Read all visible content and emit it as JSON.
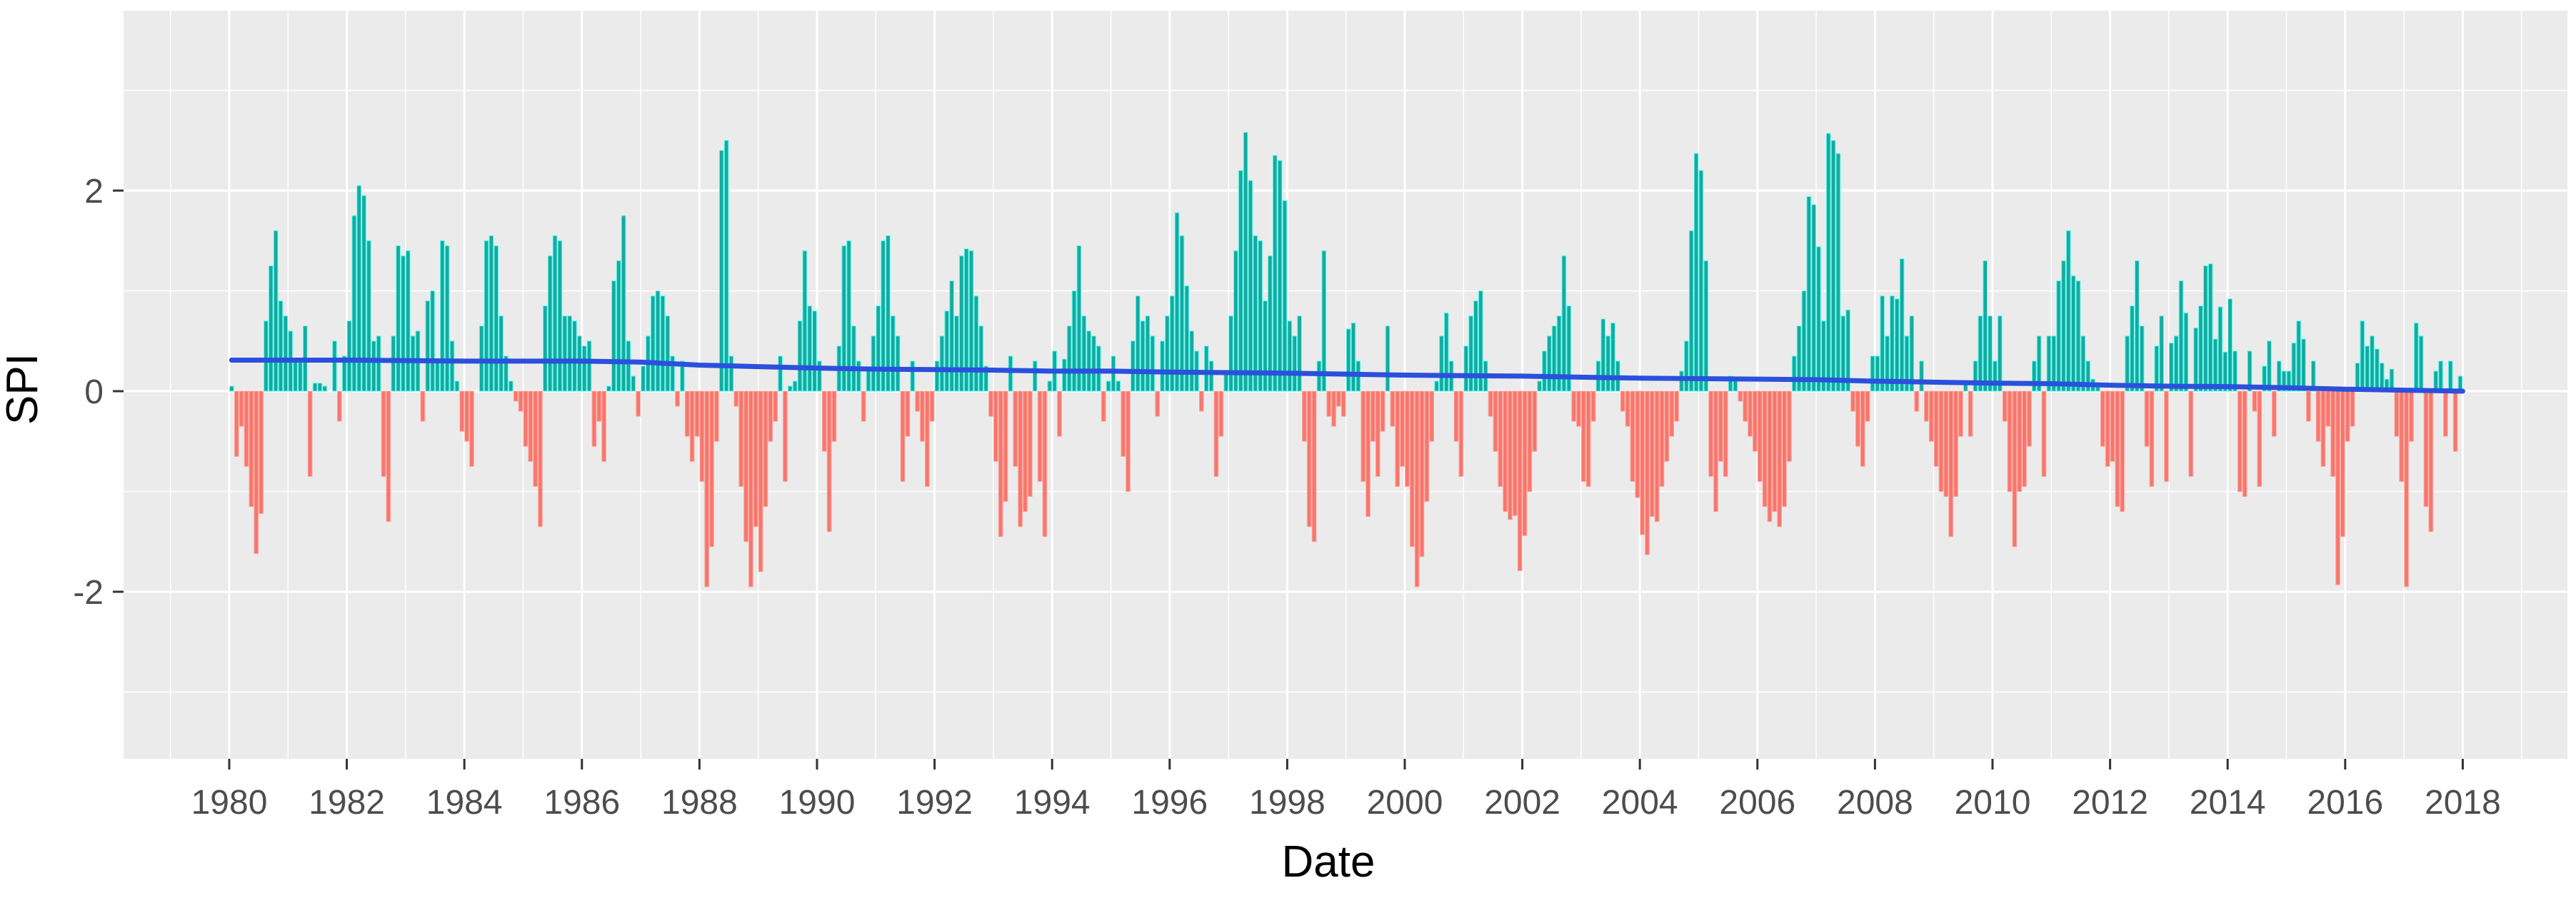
{
  "chart_data": {
    "type": "bar",
    "title": "",
    "xlabel": "Date",
    "ylabel": "SPI",
    "legend": "none",
    "grid": "on",
    "panel_background": "#EBEBEB",
    "gridline_color": "#FFFFFF",
    "axis_text_color": "#4D4D4D",
    "axis_title_color": "#000000",
    "colors": {
      "positive_fill": "#15A99F",
      "positive_edge": "#5CF8EE",
      "negative_fill": "#F8766D",
      "negative_edge": "#FBA59C",
      "trend_line": "#2B50DD"
    },
    "x_tick_labels": [
      "1980",
      "1982",
      "1984",
      "1986",
      "1988",
      "1990",
      "1992",
      "1994",
      "1996",
      "1998",
      "2000",
      "2002",
      "2004",
      "2006",
      "2008",
      "2010",
      "2012",
      "2014",
      "2016",
      "2018"
    ],
    "x_tick_years": [
      1980,
      1982,
      1984,
      1986,
      1988,
      1990,
      1992,
      1994,
      1996,
      1998,
      2000,
      2002,
      2004,
      2006,
      2008,
      2010,
      2012,
      2014,
      2016,
      2018
    ],
    "x_minor_years": [
      1979,
      1981,
      1983,
      1985,
      1987,
      1989,
      1991,
      1993,
      1995,
      1997,
      1999,
      2001,
      2003,
      2005,
      2007,
      2009,
      2011,
      2013,
      2015,
      2017,
      2019
    ],
    "y_tick_labels": [
      "2",
      "0",
      "-2"
    ],
    "y_tick_values": [
      2,
      0,
      -2
    ],
    "y_minor_values": [
      3,
      1,
      -1,
      -3
    ],
    "ylim": [
      -3.67,
      3.79
    ],
    "xlim_years": [
      1978.1,
      2019.9
    ],
    "start_year": 1980,
    "end_year_exclusive": 2018,
    "monthly_spi_by_year": [
      {
        "year": 1980,
        "values": [
          0.05,
          -0.65,
          -0.35,
          -0.75,
          -1.15,
          -1.62,
          -1.22,
          0.7,
          1.25,
          1.6,
          0.9,
          0.75
        ]
      },
      {
        "year": 1981,
        "values": [
          0.6,
          0.3,
          0.3,
          0.65,
          -0.85,
          0.08,
          0.08,
          0.05,
          0.0,
          0.5,
          -0.3,
          0.35
        ]
      },
      {
        "year": 1982,
        "values": [
          0.7,
          1.75,
          2.05,
          1.95,
          1.5,
          0.5,
          0.55,
          -0.85,
          -1.3,
          0.55,
          1.45,
          1.35
        ]
      },
      {
        "year": 1983,
        "values": [
          1.4,
          0.55,
          0.6,
          -0.3,
          0.9,
          1.0,
          0.3,
          1.5,
          1.45,
          0.5,
          0.1,
          -0.4
        ]
      },
      {
        "year": 1984,
        "values": [
          -0.5,
          -0.75,
          0.0,
          0.65,
          1.5,
          1.55,
          1.45,
          0.75,
          0.35,
          0.1,
          -0.1,
          -0.2
        ]
      },
      {
        "year": 1985,
        "values": [
          -0.55,
          -0.7,
          -0.95,
          -1.35,
          0.85,
          1.35,
          1.55,
          1.5,
          0.75,
          0.75,
          0.7,
          0.55
        ]
      },
      {
        "year": 1986,
        "values": [
          0.45,
          0.5,
          -0.55,
          -0.3,
          -0.7,
          0.05,
          1.1,
          1.3,
          1.75,
          0.5,
          0.15,
          -0.25
        ]
      },
      {
        "year": 1987,
        "values": [
          0.25,
          0.55,
          0.95,
          1.0,
          0.95,
          0.75,
          0.35,
          -0.15,
          0.3,
          -0.45,
          -0.7,
          -0.45
        ]
      },
      {
        "year": 1988,
        "values": [
          -0.9,
          -1.95,
          -1.55,
          -0.5,
          2.4,
          2.5,
          0.35,
          -0.15,
          -0.95,
          -1.5,
          -1.95,
          -1.35
        ]
      },
      {
        "year": 1989,
        "values": [
          -1.8,
          -1.15,
          -0.5,
          -0.3,
          0.35,
          -0.9,
          0.05,
          0.1,
          0.7,
          1.4,
          0.85,
          0.8
        ]
      },
      {
        "year": 1990,
        "values": [
          0.3,
          -0.6,
          -1.4,
          -0.5,
          0.45,
          1.45,
          1.5,
          0.65,
          0.3,
          -0.3,
          0.2,
          0.55
        ]
      },
      {
        "year": 1991,
        "values": [
          0.85,
          1.5,
          1.55,
          0.75,
          0.55,
          -0.9,
          -0.45,
          0.3,
          -0.2,
          -0.5,
          -0.95,
          -0.3
        ]
      },
      {
        "year": 1992,
        "values": [
          0.3,
          0.55,
          0.8,
          1.1,
          0.75,
          1.35,
          1.42,
          1.4,
          0.95,
          0.65,
          0.25,
          -0.25
        ]
      },
      {
        "year": 1993,
        "values": [
          -0.7,
          -1.45,
          -1.1,
          0.35,
          -0.75,
          -1.35,
          -1.2,
          -1.05,
          0.3,
          -0.9,
          -1.45,
          0.1
        ]
      },
      {
        "year": 1994,
        "values": [
          0.4,
          -0.45,
          0.32,
          0.65,
          1.0,
          1.45,
          0.75,
          0.6,
          0.55,
          0.45,
          -0.3,
          0.1
        ]
      },
      {
        "year": 1995,
        "values": [
          0.35,
          0.1,
          -0.65,
          -1.0,
          0.5,
          0.95,
          0.7,
          0.75,
          0.55,
          -0.25,
          0.5,
          0.75
        ]
      },
      {
        "year": 1996,
        "values": [
          0.95,
          1.78,
          1.55,
          1.05,
          0.6,
          0.4,
          -0.2,
          0.45,
          0.3,
          -0.85,
          -0.45,
          0.2
        ]
      },
      {
        "year": 1997,
        "values": [
          0.75,
          1.4,
          2.2,
          2.58,
          2.1,
          1.55,
          1.5,
          0.9,
          1.35,
          2.35,
          2.3,
          1.9
        ]
      },
      {
        "year": 1998,
        "values": [
          0.7,
          0.55,
          0.75,
          -0.5,
          -1.35,
          -1.5,
          0.3,
          1.4,
          -0.25,
          -0.35,
          -0.15,
          -0.25
        ]
      },
      {
        "year": 1999,
        "values": [
          0.62,
          0.68,
          0.3,
          -0.9,
          -1.25,
          -0.5,
          -0.85,
          -0.4,
          0.65,
          -0.35,
          -0.95,
          -0.75
        ]
      },
      {
        "year": 2000,
        "values": [
          -0.95,
          -1.55,
          -1.95,
          -1.65,
          -1.1,
          -0.5,
          0.1,
          0.55,
          0.78,
          0.3,
          -0.5,
          -0.85
        ]
      },
      {
        "year": 2001,
        "values": [
          0.45,
          0.75,
          0.9,
          1.0,
          0.3,
          -0.25,
          -0.6,
          -0.95,
          -1.2,
          -1.28,
          -1.24,
          -1.79
        ]
      },
      {
        "year": 2002,
        "values": [
          -1.44,
          -1.0,
          -0.6,
          0.1,
          0.4,
          0.55,
          0.65,
          0.75,
          1.35,
          0.85,
          -0.3,
          -0.35
        ]
      },
      {
        "year": 2003,
        "values": [
          -0.9,
          -0.95,
          -0.3,
          0.3,
          0.72,
          0.55,
          0.68,
          0.3,
          -0.2,
          -0.35,
          -0.9,
          -1.06
        ]
      },
      {
        "year": 2004,
        "values": [
          -1.43,
          -1.63,
          -1.25,
          -1.3,
          -0.95,
          -0.7,
          -0.45,
          -0.3,
          0.2,
          0.5,
          1.6,
          2.37
        ]
      },
      {
        "year": 2005,
        "values": [
          2.2,
          1.3,
          -0.85,
          -1.2,
          -0.7,
          -0.85,
          0.15,
          0.1,
          -0.1,
          -0.3,
          -0.45,
          -0.6
        ]
      },
      {
        "year": 2006,
        "values": [
          -0.9,
          -1.15,
          -1.3,
          -1.2,
          -1.35,
          -1.15,
          -0.7,
          0.35,
          0.65,
          1.0,
          1.94,
          1.86
        ]
      },
      {
        "year": 2007,
        "values": [
          1.44,
          0.7,
          2.57,
          2.5,
          2.37,
          0.75,
          0.81,
          -0.2,
          -0.55,
          -0.75,
          -0.3,
          0.35
        ]
      },
      {
        "year": 2008,
        "values": [
          0.35,
          0.95,
          0.55,
          0.95,
          0.92,
          1.32,
          0.55,
          0.75,
          -0.2,
          0.3,
          -0.3,
          -0.5
        ]
      },
      {
        "year": 2009,
        "values": [
          -0.75,
          -1.0,
          -1.05,
          -1.45,
          -1.05,
          -0.45,
          0.1,
          -0.45,
          0.3,
          0.75,
          1.3,
          0.75
        ]
      },
      {
        "year": 2010,
        "values": [
          0.3,
          0.75,
          -0.3,
          -1.0,
          -1.55,
          -1.0,
          -0.95,
          -0.55,
          0.3,
          0.55,
          -0.85,
          0.55
        ]
      },
      {
        "year": 2011,
        "values": [
          0.55,
          1.1,
          1.3,
          1.6,
          1.15,
          1.1,
          0.55,
          0.3,
          0.12,
          0.05,
          -0.55,
          -0.75
        ]
      },
      {
        "year": 2012,
        "values": [
          -0.7,
          -1.15,
          -1.2,
          0.55,
          0.85,
          1.3,
          0.65,
          -0.55,
          -0.95,
          0.45,
          0.75,
          -0.9
        ]
      },
      {
        "year": 2013,
        "values": [
          0.48,
          0.55,
          1.1,
          0.78,
          -0.85,
          0.63,
          0.85,
          1.25,
          1.27,
          0.52,
          0.84,
          0.39
        ]
      },
      {
        "year": 2014,
        "values": [
          0.92,
          0.4,
          -1.0,
          -1.05,
          0.4,
          -0.2,
          -0.95,
          0.25,
          0.5,
          -0.45,
          0.3,
          0.2
        ]
      },
      {
        "year": 2015,
        "values": [
          0.2,
          0.48,
          0.7,
          0.52,
          -0.3,
          0.3,
          -0.5,
          -0.75,
          -0.35,
          -0.85,
          -1.93,
          -1.45
        ]
      },
      {
        "year": 2016,
        "values": [
          -0.5,
          -0.35,
          0.28,
          0.7,
          0.45,
          0.55,
          0.42,
          0.28,
          0.12,
          0.22,
          -0.45,
          -0.9
        ]
      },
      {
        "year": 2017,
        "values": [
          -1.95,
          -0.5,
          0.68,
          0.55,
          -1.15,
          -1.4,
          0.2,
          0.3,
          -0.45,
          0.3,
          -0.6,
          0.15
        ]
      }
    ],
    "trend_line_points": [
      {
        "x": 1980.04,
        "y": 0.31
      },
      {
        "x": 1982,
        "y": 0.31
      },
      {
        "x": 1984,
        "y": 0.3
      },
      {
        "x": 1986,
        "y": 0.3
      },
      {
        "x": 1987,
        "y": 0.29
      },
      {
        "x": 1988,
        "y": 0.26
      },
      {
        "x": 1989,
        "y": 0.245
      },
      {
        "x": 1990,
        "y": 0.23
      },
      {
        "x": 1991,
        "y": 0.22
      },
      {
        "x": 1992,
        "y": 0.215
      },
      {
        "x": 1993,
        "y": 0.21
      },
      {
        "x": 1994,
        "y": 0.2
      },
      {
        "x": 1995,
        "y": 0.2
      },
      {
        "x": 1996,
        "y": 0.19
      },
      {
        "x": 1997,
        "y": 0.185
      },
      {
        "x": 1998,
        "y": 0.18
      },
      {
        "x": 1999,
        "y": 0.17
      },
      {
        "x": 2000,
        "y": 0.16
      },
      {
        "x": 2001,
        "y": 0.155
      },
      {
        "x": 2002,
        "y": 0.15
      },
      {
        "x": 2003,
        "y": 0.14
      },
      {
        "x": 2004,
        "y": 0.13
      },
      {
        "x": 2005,
        "y": 0.125
      },
      {
        "x": 2006,
        "y": 0.12
      },
      {
        "x": 2007,
        "y": 0.115
      },
      {
        "x": 2008,
        "y": 0.1
      },
      {
        "x": 2009,
        "y": 0.09
      },
      {
        "x": 2010,
        "y": 0.08
      },
      {
        "x": 2011,
        "y": 0.075
      },
      {
        "x": 2012,
        "y": 0.06
      },
      {
        "x": 2013,
        "y": 0.05
      },
      {
        "x": 2014,
        "y": 0.045
      },
      {
        "x": 2015,
        "y": 0.035
      },
      {
        "x": 2016,
        "y": 0.02
      },
      {
        "x": 2017,
        "y": 0.01
      },
      {
        "x": 2018,
        "y": 0.0
      }
    ]
  }
}
